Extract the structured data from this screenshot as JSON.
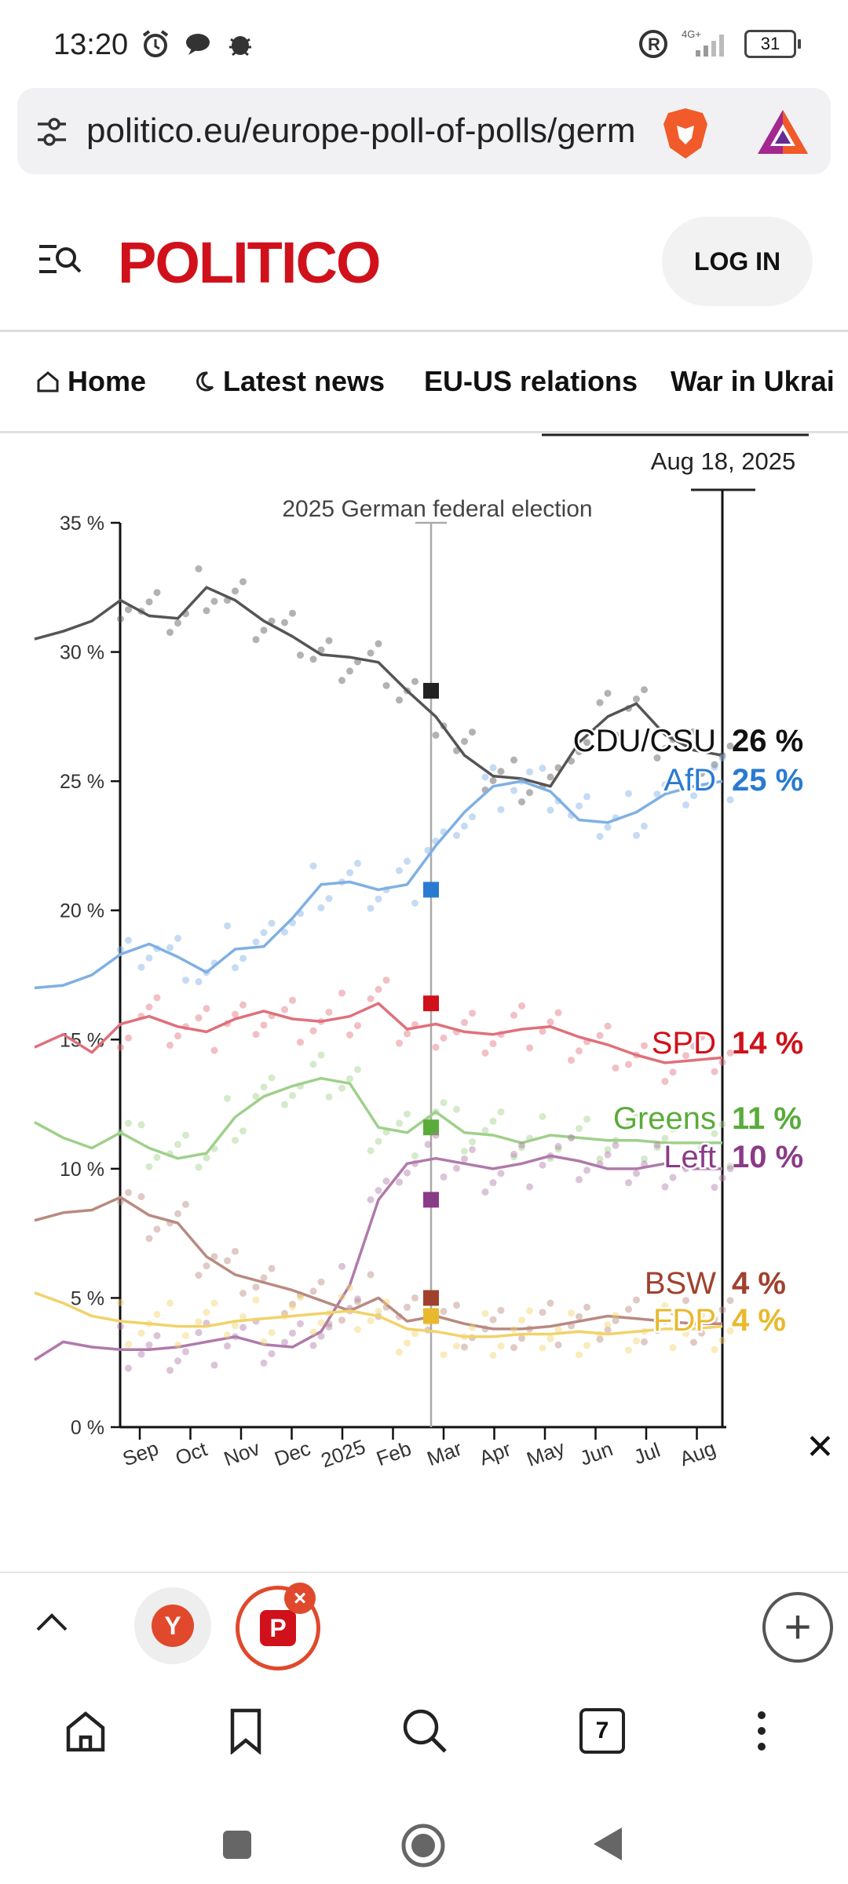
{
  "status": {
    "time": "13:20",
    "battery": "31",
    "network": "4G+"
  },
  "browser": {
    "url": "politico.eu/europe-poll-of-polls/germ",
    "tab_count": "7"
  },
  "site": {
    "logo": "POLITICO",
    "login_label": "LOG IN"
  },
  "nav": {
    "items": [
      {
        "label": "Home",
        "icon": "home-icon"
      },
      {
        "label": "Latest news",
        "icon": "moon-icon"
      },
      {
        "label": "EU-US relations"
      },
      {
        "label": "War in Ukrai"
      }
    ]
  },
  "chart_data": {
    "type": "line",
    "date_label": "Aug 18, 2025",
    "event_label": "2025 German federal election",
    "ylim": [
      0,
      35
    ],
    "yticks": [
      "0 %",
      "5 %",
      "10 %",
      "15 %",
      "20 %",
      "25 %",
      "30 %",
      "35 %"
    ],
    "xticks": [
      "Sep",
      "Oct",
      "Nov",
      "Dec",
      "2025",
      "Feb",
      "Mar",
      "Apr",
      "May",
      "Jun",
      "Jul",
      "Aug"
    ],
    "x_months_start": "2024-08",
    "series": [
      {
        "name": "CDU/CSU",
        "value_label": "26 %",
        "color": "#555555",
        "label_color": "#111111",
        "election_result": 28.5,
        "points": [
          30.5,
          30.8,
          31.2,
          32.0,
          31.4,
          31.3,
          32.5,
          32.0,
          31.2,
          30.6,
          29.9,
          29.8,
          29.6,
          28.5,
          27.5,
          26.0,
          25.2,
          25.1,
          24.8,
          26.5,
          27.5,
          28.0,
          26.8,
          26.2,
          26.0
        ]
      },
      {
        "name": "AfD",
        "value_label": "25 %",
        "color": "#7fb0e4",
        "label_color": "#2a7ad2",
        "election_result": 20.8,
        "points": [
          17.0,
          17.1,
          17.5,
          18.3,
          18.7,
          18.2,
          17.6,
          18.5,
          18.6,
          19.7,
          21.0,
          21.1,
          20.8,
          21.0,
          22.5,
          23.8,
          24.8,
          25.0,
          24.6,
          23.5,
          23.4,
          23.8,
          24.5,
          24.8,
          25.0
        ]
      },
      {
        "name": "SPD",
        "value_label": "14 %",
        "color": "#e0707c",
        "label_color": "#d0111b",
        "election_result": 16.4,
        "points": [
          14.7,
          15.2,
          14.5,
          15.6,
          15.9,
          15.5,
          15.3,
          15.8,
          16.1,
          15.8,
          15.7,
          15.9,
          16.4,
          15.4,
          15.6,
          15.3,
          15.2,
          15.4,
          15.5,
          15.1,
          14.8,
          14.4,
          14.1,
          14.2,
          14.3
        ]
      },
      {
        "name": "Greens",
        "value_label": "11 %",
        "color": "#9fd08a",
        "label_color": "#5aac3a",
        "election_result": 11.6,
        "points": [
          11.8,
          11.2,
          10.8,
          11.4,
          10.8,
          10.4,
          10.6,
          12.0,
          12.8,
          13.2,
          13.5,
          13.3,
          11.6,
          11.4,
          12.2,
          11.4,
          11.3,
          11.0,
          11.3,
          11.2,
          11.1,
          11.1,
          11.0,
          11.0,
          11.0
        ]
      },
      {
        "name": "Left",
        "value_label": "10 %",
        "color": "#b07aaa",
        "label_color": "#8a3b87",
        "election_result": 8.8,
        "points": [
          2.6,
          3.3,
          3.1,
          3.0,
          3.0,
          3.1,
          3.3,
          3.5,
          3.2,
          3.1,
          3.7,
          5.5,
          8.8,
          10.2,
          10.4,
          10.2,
          10.0,
          10.2,
          10.5,
          10.3,
          10.0,
          10.0,
          10.2,
          10.0,
          10.0
        ]
      },
      {
        "name": "BSW",
        "value_label": "4 %",
        "color": "#b98a80",
        "label_color": "#a0412e",
        "election_result": 5.0,
        "points": [
          8.0,
          8.3,
          8.4,
          8.9,
          8.2,
          7.9,
          6.6,
          5.9,
          5.6,
          5.3,
          4.9,
          4.5,
          5.0,
          4.1,
          4.3,
          4.0,
          3.8,
          3.8,
          3.9,
          4.1,
          4.3,
          4.2,
          4.1,
          4.0,
          4.0
        ]
      },
      {
        "name": "FDP",
        "value_label": "4 %",
        "color": "#f2d26a",
        "label_color": "#e8b92c",
        "election_result": 4.3,
        "points": [
          5.2,
          4.8,
          4.3,
          4.1,
          4.0,
          3.9,
          3.9,
          4.1,
          4.2,
          4.3,
          4.4,
          4.5,
          4.3,
          3.8,
          3.7,
          3.5,
          3.5,
          3.6,
          3.6,
          3.7,
          3.6,
          3.7,
          3.8,
          3.8,
          3.9
        ]
      }
    ]
  }
}
